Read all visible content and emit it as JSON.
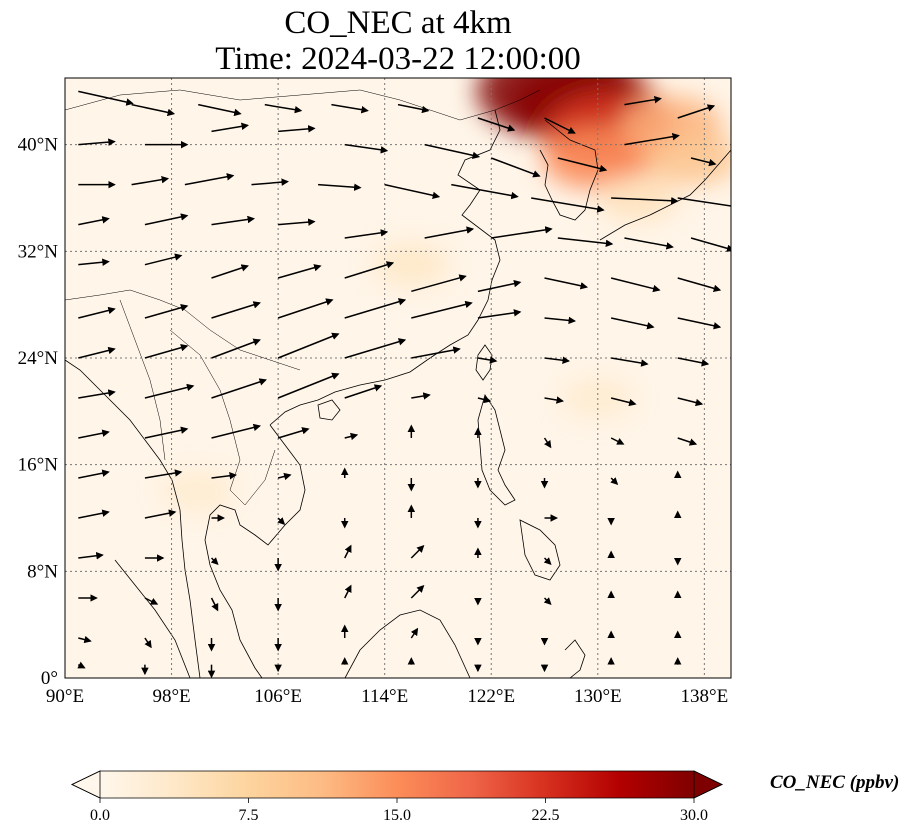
{
  "title": {
    "line1": "CO_NEC at 4km",
    "line2": "Time: 2024-03-22 12:00:00"
  },
  "map": {
    "variable": "CO_NEC",
    "lon_range": [
      90,
      140
    ],
    "lat_range": [
      0,
      45
    ],
    "lon_ticks": [
      {
        "value": 90,
        "label": "90°E"
      },
      {
        "value": 98,
        "label": "98°E"
      },
      {
        "value": 106,
        "label": "106°E"
      },
      {
        "value": 114,
        "label": "114°E"
      },
      {
        "value": 122,
        "label": "122°E"
      },
      {
        "value": 130,
        "label": "130°E"
      },
      {
        "value": 138,
        "label": "138°E"
      }
    ],
    "lat_ticks": [
      {
        "value": 0,
        "label": "0°"
      },
      {
        "value": 8,
        "label": "8°N"
      },
      {
        "value": 16,
        "label": "16°N"
      },
      {
        "value": 24,
        "label": "24°N"
      },
      {
        "value": 32,
        "label": "32°N"
      },
      {
        "value": 40,
        "label": "40°N"
      }
    ],
    "gridlines": true,
    "background_color": "#fff5e8",
    "plumes": [
      {
        "lon": 129.0,
        "lat": 43.0,
        "value": 26
      },
      {
        "lon": 127.0,
        "lat": 44.0,
        "value": 30
      },
      {
        "lon": 131.0,
        "lat": 41.0,
        "value": 22
      },
      {
        "lon": 130.0,
        "lat": 39.0,
        "value": 15
      },
      {
        "lon": 135.5,
        "lat": 41.5,
        "value": 12
      },
      {
        "lon": 137.0,
        "lat": 39.0,
        "value": 10
      },
      {
        "lon": 133.0,
        "lat": 36.0,
        "value": 5
      },
      {
        "lon": 116.0,
        "lat": 31.0,
        "value": 4
      },
      {
        "lon": 100.0,
        "lat": 14.0,
        "value": 3
      },
      {
        "lon": 130.0,
        "lat": 21.0,
        "value": 3
      }
    ],
    "wind_vectors": [
      [
        91,
        44,
        18,
        -4
      ],
      [
        95,
        43,
        14,
        -3
      ],
      [
        100,
        43,
        14,
        -3
      ],
      [
        105,
        43,
        12,
        -2
      ],
      [
        110,
        43,
        12,
        -2
      ],
      [
        115,
        43,
        10,
        -2
      ],
      [
        121,
        42,
        12,
        -4
      ],
      [
        126,
        42,
        10,
        -5
      ],
      [
        132,
        43,
        12,
        2
      ],
      [
        136,
        42,
        12,
        4
      ],
      [
        91,
        40,
        12,
        1
      ],
      [
        96,
        40,
        14,
        0
      ],
      [
        101,
        41,
        12,
        2
      ],
      [
        106,
        41,
        12,
        1
      ],
      [
        111,
        40,
        14,
        -2
      ],
      [
        117,
        40,
        18,
        -4
      ],
      [
        122,
        39,
        16,
        -6
      ],
      [
        127,
        39,
        16,
        -4
      ],
      [
        132,
        40,
        18,
        3
      ],
      [
        137,
        39,
        8,
        -2
      ],
      [
        91,
        37,
        12,
        0
      ],
      [
        95,
        37,
        12,
        2
      ],
      [
        99,
        37,
        16,
        3
      ],
      [
        104,
        37,
        12,
        1
      ],
      [
        109,
        37,
        14,
        -1
      ],
      [
        114,
        37,
        18,
        -4
      ],
      [
        119,
        37,
        22,
        -4
      ],
      [
        125,
        36,
        24,
        -4
      ],
      [
        131,
        36,
        22,
        -1
      ],
      [
        136,
        36,
        20,
        -3
      ],
      [
        91,
        34,
        10,
        2
      ],
      [
        96,
        34,
        14,
        3
      ],
      [
        101,
        34,
        14,
        2
      ],
      [
        106,
        34,
        12,
        1
      ],
      [
        111,
        33,
        14,
        2
      ],
      [
        117,
        33,
        16,
        3
      ],
      [
        122,
        33,
        20,
        3
      ],
      [
        127,
        33,
        18,
        -2
      ],
      [
        132,
        33,
        16,
        -3
      ],
      [
        137,
        33,
        14,
        -4
      ],
      [
        91,
        31,
        10,
        1
      ],
      [
        96,
        31,
        12,
        3
      ],
      [
        101,
        30,
        12,
        4
      ],
      [
        106,
        30,
        14,
        4
      ],
      [
        111,
        30,
        16,
        5
      ],
      [
        116,
        29,
        18,
        5
      ],
      [
        121,
        29,
        14,
        3
      ],
      [
        126,
        30,
        14,
        -3
      ],
      [
        131,
        30,
        16,
        -4
      ],
      [
        136,
        30,
        14,
        -4
      ],
      [
        91,
        27,
        12,
        3
      ],
      [
        96,
        27,
        14,
        4
      ],
      [
        101,
        27,
        16,
        5
      ],
      [
        106,
        27,
        18,
        6
      ],
      [
        111,
        27,
        20,
        6
      ],
      [
        116,
        27,
        20,
        5
      ],
      [
        121,
        27,
        14,
        2
      ],
      [
        126,
        27,
        10,
        -1
      ],
      [
        131,
        27,
        14,
        -3
      ],
      [
        136,
        27,
        14,
        -3
      ],
      [
        91,
        24,
        12,
        3
      ],
      [
        96,
        24,
        14,
        4
      ],
      [
        101,
        24,
        16,
        6
      ],
      [
        106,
        24,
        20,
        8
      ],
      [
        111,
        24,
        20,
        6
      ],
      [
        116,
        24,
        16,
        3
      ],
      [
        121,
        24,
        6,
        -1
      ],
      [
        126,
        24,
        8,
        -1
      ],
      [
        131,
        24,
        12,
        -2
      ],
      [
        136,
        24,
        10,
        -2
      ],
      [
        91,
        21,
        12,
        2
      ],
      [
        96,
        21,
        16,
        4
      ],
      [
        101,
        21,
        18,
        6
      ],
      [
        106,
        21,
        20,
        8
      ],
      [
        111,
        21,
        12,
        4
      ],
      [
        116,
        21,
        6,
        1
      ],
      [
        121,
        21,
        4,
        -1
      ],
      [
        126,
        21,
        6,
        -1
      ],
      [
        131,
        21,
        8,
        -2
      ],
      [
        136,
        21,
        8,
        -2
      ],
      [
        91,
        18,
        10,
        2
      ],
      [
        96,
        18,
        14,
        3
      ],
      [
        101,
        18,
        16,
        4
      ],
      [
        106,
        18,
        10,
        3
      ],
      [
        111,
        18,
        4,
        1
      ],
      [
        116,
        18,
        0,
        4
      ],
      [
        121,
        18,
        0,
        3
      ],
      [
        126,
        18,
        2,
        -3
      ],
      [
        131,
        18,
        4,
        -2
      ],
      [
        136,
        18,
        6,
        -2
      ],
      [
        91,
        15,
        10,
        2
      ],
      [
        96,
        15,
        12,
        2
      ],
      [
        101,
        15,
        8,
        1
      ],
      [
        106,
        15,
        4,
        1
      ],
      [
        111,
        15,
        0,
        3
      ],
      [
        116,
        15,
        0,
        -4
      ],
      [
        121,
        15,
        0,
        -3
      ],
      [
        126,
        15,
        0,
        -3
      ],
      [
        131,
        15,
        2,
        -2
      ],
      [
        136,
        15,
        0,
        2
      ],
      [
        91,
        12,
        10,
        2
      ],
      [
        96,
        12,
        10,
        2
      ],
      [
        101,
        12,
        4,
        0
      ],
      [
        106,
        12,
        2,
        -2
      ],
      [
        111,
        12,
        0,
        -3
      ],
      [
        116,
        12,
        0,
        4
      ],
      [
        121,
        12,
        0,
        -3
      ],
      [
        126,
        12,
        4,
        0
      ],
      [
        131,
        12,
        0,
        -2
      ],
      [
        136,
        12,
        0,
        2
      ],
      [
        91,
        9,
        8,
        1
      ],
      [
        96,
        9,
        6,
        0
      ],
      [
        101,
        9,
        2,
        -2
      ],
      [
        106,
        9,
        0,
        -4
      ],
      [
        111,
        9,
        2,
        4
      ],
      [
        116,
        9,
        4,
        4
      ],
      [
        121,
        9,
        0,
        3
      ],
      [
        126,
        9,
        2,
        -2
      ],
      [
        131,
        9,
        0,
        2
      ],
      [
        136,
        9,
        0,
        -2
      ],
      [
        91,
        6,
        6,
        0
      ],
      [
        96,
        6,
        4,
        -2
      ],
      [
        101,
        6,
        2,
        -4
      ],
      [
        106,
        6,
        0,
        -4
      ],
      [
        111,
        6,
        2,
        4
      ],
      [
        116,
        6,
        4,
        4
      ],
      [
        121,
        6,
        0,
        -2
      ],
      [
        126,
        6,
        2,
        -2
      ],
      [
        131,
        6,
        0,
        2
      ],
      [
        136,
        6,
        0,
        2
      ],
      [
        91,
        3,
        4,
        -1
      ],
      [
        96,
        3,
        2,
        -3
      ],
      [
        101,
        3,
        0,
        -4
      ],
      [
        106,
        3,
        0,
        -4
      ],
      [
        111,
        3,
        0,
        4
      ],
      [
        116,
        3,
        2,
        3
      ],
      [
        121,
        3,
        0,
        -2
      ],
      [
        126,
        3,
        0,
        -2
      ],
      [
        131,
        3,
        0,
        2
      ],
      [
        136,
        3,
        0,
        2
      ],
      [
        91,
        1,
        2,
        -1
      ],
      [
        96,
        1,
        0,
        -3
      ],
      [
        101,
        1,
        0,
        -4
      ],
      [
        106,
        1,
        0,
        -2
      ],
      [
        111,
        1,
        0,
        2
      ],
      [
        116,
        1,
        0,
        2
      ],
      [
        121,
        1,
        0,
        -2
      ],
      [
        126,
        1,
        0,
        -2
      ],
      [
        131,
        1,
        0,
        2
      ],
      [
        136,
        1,
        0,
        2
      ]
    ]
  },
  "colorbar": {
    "label": "CO_NEC (ppbv)",
    "vmin": 0,
    "vmax": 30,
    "ticks": [
      "0.0",
      "7.5",
      "15.0",
      "22.5",
      "30.0"
    ],
    "colors": [
      "#fff7ec",
      "#fee8c8",
      "#fdd49e",
      "#fdbb84",
      "#fc8d59",
      "#ef6548",
      "#d7301f",
      "#b30000",
      "#7f0000"
    ],
    "extend": "both"
  }
}
